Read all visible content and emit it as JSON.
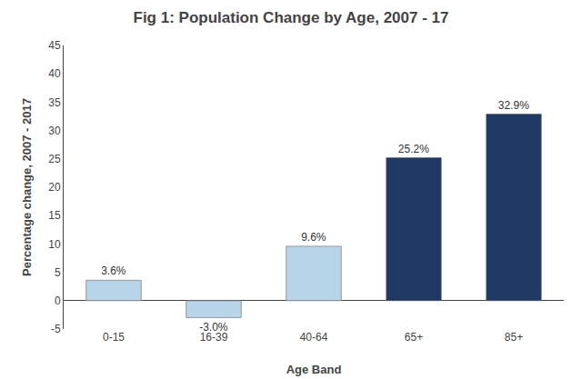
{
  "chart_data": {
    "type": "bar",
    "title": "Fig 1: Population Change by Age, 2007 - 17",
    "xlabel": "Age Band",
    "ylabel": "Percentage change, 2007 - 2017",
    "categories": [
      "0-15",
      "16-39",
      "40-64",
      "65+",
      "85+"
    ],
    "values": [
      3.6,
      -3.0,
      9.6,
      25.2,
      32.9
    ],
    "value_labels": [
      "3.6%",
      "-3.0%",
      "9.6%",
      "25.2%",
      "32.9%"
    ],
    "colors": [
      "#b8d4e8",
      "#b8d4e8",
      "#b8d4e8",
      "#1f3864",
      "#1f3864"
    ],
    "ylim": [
      -5,
      45
    ],
    "yticks": [
      -5,
      0,
      5,
      10,
      15,
      20,
      25,
      30,
      35,
      40,
      45
    ],
    "grid": false,
    "data_labels": true
  }
}
